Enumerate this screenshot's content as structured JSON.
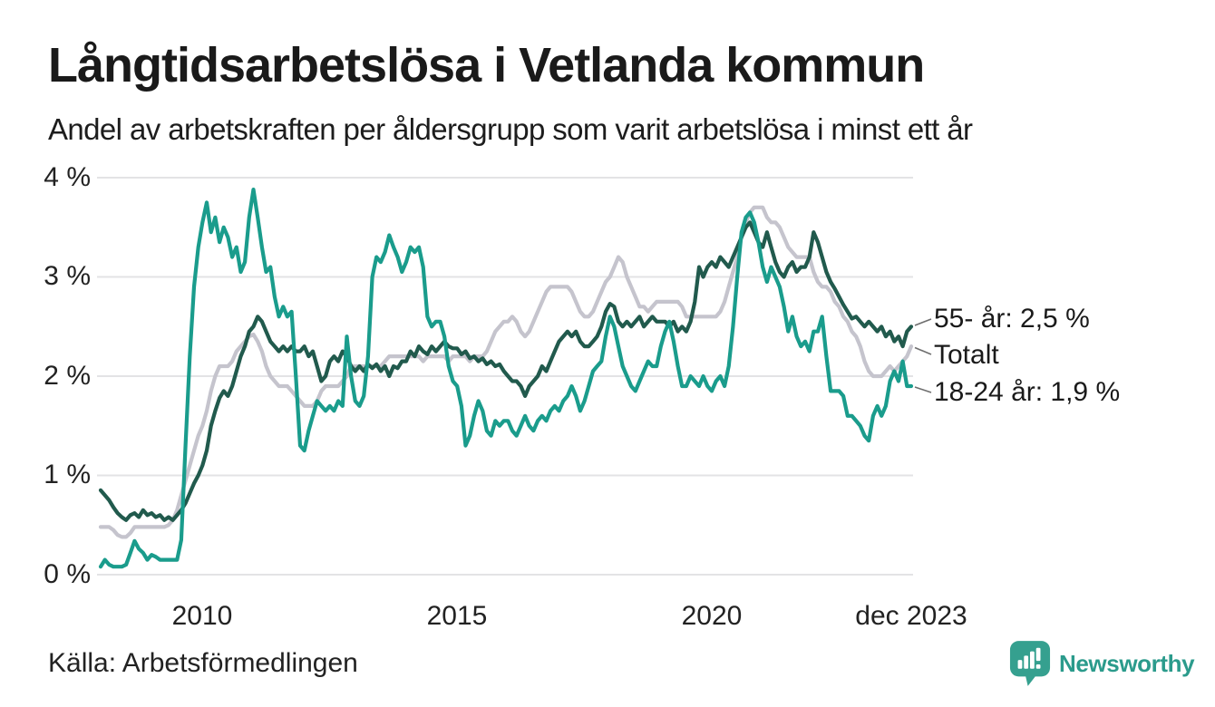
{
  "title": "Långtidsarbetslösa i Vetlanda kommun",
  "subtitle": "Andel av arbetskraften per åldersgrupp som varit arbetslösa i minst ett år",
  "source": "Källa: Arbetsförmedlingen",
  "brand": {
    "name": "Newsworthy",
    "color": "#2b9b8c"
  },
  "colors": {
    "line_55_ar": "#215a4d",
    "line_totalt": "#c5c4cd",
    "line_18_24_ar": "#1a9c8c",
    "grid": "#e3e3e5",
    "text": "#1a1a1a"
  },
  "chart_data": {
    "type": "line",
    "title": "Långtidsarbetslösa i Vetlanda kommun",
    "subtitle": "Andel av arbetskraften per åldersgrupp som varit arbetslösa i minst ett år",
    "x_start": "2008-01",
    "x_end": "2023-12",
    "frequency": "monthly",
    "ylim": [
      0,
      4
    ],
    "grid": "horizontal-only",
    "legend_position": "right-edge-labels",
    "y_ticks": [
      "0 %",
      "1 %",
      "2 %",
      "3 %",
      "4 %"
    ],
    "x_tick_labels": [
      "2010",
      "2015",
      "2020",
      "dec 2023"
    ],
    "x_tick_month_index": [
      24,
      84,
      144,
      191
    ],
    "series": [
      {
        "name": "55- år",
        "label": "55- år: 2,5 %",
        "last_value": 2.5,
        "color": "#215a4d",
        "values": [
          0.85,
          0.8,
          0.75,
          0.68,
          0.62,
          0.58,
          0.55,
          0.6,
          0.62,
          0.58,
          0.65,
          0.6,
          0.62,
          0.58,
          0.6,
          0.55,
          0.58,
          0.55,
          0.6,
          0.65,
          0.72,
          0.82,
          0.92,
          1.0,
          1.1,
          1.25,
          1.5,
          1.65,
          1.78,
          1.85,
          1.8,
          1.9,
          2.05,
          2.2,
          2.3,
          2.45,
          2.5,
          2.6,
          2.55,
          2.45,
          2.35,
          2.3,
          2.25,
          2.3,
          2.25,
          2.3,
          2.25,
          2.25,
          2.3,
          2.2,
          2.25,
          2.1,
          1.95,
          2.0,
          2.15,
          2.2,
          2.15,
          2.25,
          2.2,
          2.1,
          2.05,
          2.1,
          2.05,
          2.12,
          2.08,
          2.12,
          2.05,
          2.1,
          2.0,
          2.1,
          2.08,
          2.15,
          2.15,
          2.25,
          2.2,
          2.3,
          2.25,
          2.22,
          2.3,
          2.25,
          2.3,
          2.35,
          2.3,
          2.28,
          2.28,
          2.22,
          2.25,
          2.18,
          2.2,
          2.15,
          2.18,
          2.12,
          2.15,
          2.1,
          2.12,
          2.05,
          2.0,
          1.95,
          1.95,
          1.9,
          1.8,
          1.9,
          1.95,
          2.0,
          2.1,
          2.05,
          2.15,
          2.25,
          2.35,
          2.4,
          2.45,
          2.4,
          2.45,
          2.35,
          2.3,
          2.3,
          2.35,
          2.4,
          2.5,
          2.65,
          2.73,
          2.7,
          2.55,
          2.5,
          2.55,
          2.5,
          2.55,
          2.6,
          2.5,
          2.55,
          2.6,
          2.55,
          2.55,
          2.55,
          2.5,
          2.55,
          2.45,
          2.5,
          2.45,
          2.55,
          2.75,
          3.1,
          3.0,
          3.1,
          3.15,
          3.1,
          3.2,
          3.15,
          3.1,
          3.2,
          3.3,
          3.4,
          3.5,
          3.55,
          3.45,
          3.35,
          3.3,
          3.45,
          3.3,
          3.15,
          3.05,
          3.0,
          3.1,
          3.15,
          3.05,
          3.1,
          3.1,
          3.2,
          3.45,
          3.35,
          3.2,
          3.05,
          2.95,
          2.88,
          2.8,
          2.72,
          2.65,
          2.58,
          2.6,
          2.55,
          2.5,
          2.55,
          2.5,
          2.45,
          2.5,
          2.4,
          2.45,
          2.35,
          2.4,
          2.3,
          2.45,
          2.5
        ]
      },
      {
        "name": "Totalt",
        "label": "Totalt",
        "last_value": 2.3,
        "color": "#c5c4cd",
        "values": [
          0.48,
          0.48,
          0.48,
          0.45,
          0.4,
          0.38,
          0.38,
          0.42,
          0.48,
          0.48,
          0.48,
          0.48,
          0.48,
          0.48,
          0.48,
          0.48,
          0.5,
          0.55,
          0.65,
          0.8,
          0.95,
          1.1,
          1.25,
          1.4,
          1.5,
          1.65,
          1.85,
          2.0,
          2.1,
          2.1,
          2.1,
          2.15,
          2.25,
          2.3,
          2.35,
          2.4,
          2.42,
          2.35,
          2.25,
          2.1,
          2.0,
          1.95,
          1.9,
          1.9,
          1.9,
          1.85,
          1.8,
          1.75,
          1.7,
          1.7,
          1.7,
          1.75,
          1.85,
          1.9,
          1.9,
          1.9,
          1.9,
          1.95,
          2.0,
          2.1,
          2.1,
          2.1,
          2.1,
          2.1,
          2.1,
          2.1,
          2.1,
          2.15,
          2.2,
          2.2,
          2.2,
          2.2,
          2.2,
          2.2,
          2.2,
          2.2,
          2.15,
          2.2,
          2.2,
          2.2,
          2.2,
          2.2,
          2.15,
          2.2,
          2.2,
          2.2,
          2.2,
          2.15,
          2.2,
          2.2,
          2.2,
          2.25,
          2.35,
          2.45,
          2.5,
          2.55,
          2.55,
          2.6,
          2.55,
          2.45,
          2.4,
          2.45,
          2.55,
          2.65,
          2.75,
          2.85,
          2.9,
          2.9,
          2.9,
          2.9,
          2.9,
          2.85,
          2.75,
          2.65,
          2.6,
          2.6,
          2.65,
          2.75,
          2.85,
          2.95,
          3.0,
          3.1,
          3.2,
          3.15,
          3.0,
          2.9,
          2.8,
          2.7,
          2.7,
          2.65,
          2.7,
          2.75,
          2.75,
          2.75,
          2.75,
          2.75,
          2.75,
          2.7,
          2.6,
          2.6,
          2.6,
          2.6,
          2.6,
          2.6,
          2.6,
          2.6,
          2.65,
          2.75,
          2.9,
          3.05,
          3.2,
          3.4,
          3.55,
          3.65,
          3.7,
          3.7,
          3.7,
          3.6,
          3.55,
          3.55,
          3.5,
          3.4,
          3.3,
          3.25,
          3.2,
          3.2,
          3.2,
          3.2,
          3.05,
          2.95,
          2.9,
          2.9,
          2.85,
          2.75,
          2.7,
          2.6,
          2.55,
          2.45,
          2.4,
          2.3,
          2.15,
          2.05,
          2.0,
          2.0,
          2.0,
          2.05,
          2.1,
          2.05,
          2.1,
          2.15,
          2.2,
          2.3
        ]
      },
      {
        "name": "18-24 år",
        "label": "18-24 år: 1,9 %",
        "last_value": 1.9,
        "color": "#1a9c8c",
        "values": [
          0.08,
          0.15,
          0.1,
          0.08,
          0.08,
          0.08,
          0.1,
          0.22,
          0.34,
          0.26,
          0.22,
          0.15,
          0.2,
          0.18,
          0.15,
          0.15,
          0.15,
          0.15,
          0.15,
          0.35,
          1.3,
          2.2,
          2.9,
          3.3,
          3.55,
          3.75,
          3.45,
          3.6,
          3.35,
          3.5,
          3.4,
          3.2,
          3.3,
          3.05,
          3.15,
          3.6,
          3.88,
          3.6,
          3.3,
          3.05,
          3.1,
          2.8,
          2.6,
          2.7,
          2.6,
          2.65,
          2.0,
          1.3,
          1.25,
          1.45,
          1.6,
          1.75,
          1.7,
          1.65,
          1.7,
          1.65,
          1.75,
          1.7,
          2.4,
          2.0,
          1.75,
          1.7,
          1.8,
          2.2,
          3.0,
          3.2,
          3.15,
          3.25,
          3.42,
          3.3,
          3.2,
          3.05,
          3.15,
          3.3,
          3.25,
          3.3,
          3.1,
          2.6,
          2.5,
          2.55,
          2.55,
          2.4,
          2.1,
          1.95,
          1.9,
          1.7,
          1.3,
          1.4,
          1.6,
          1.75,
          1.65,
          1.45,
          1.4,
          1.55,
          1.5,
          1.55,
          1.55,
          1.45,
          1.4,
          1.5,
          1.6,
          1.5,
          1.45,
          1.55,
          1.6,
          1.55,
          1.65,
          1.7,
          1.65,
          1.75,
          1.8,
          1.9,
          1.8,
          1.65,
          1.75,
          1.9,
          2.05,
          2.1,
          2.15,
          2.4,
          2.6,
          2.5,
          2.3,
          2.1,
          2.0,
          1.9,
          1.85,
          1.95,
          2.05,
          2.15,
          2.1,
          2.1,
          2.3,
          2.45,
          2.55,
          2.35,
          2.1,
          1.9,
          1.9,
          2.0,
          1.95,
          1.9,
          2.0,
          1.9,
          1.85,
          1.95,
          2.0,
          1.9,
          2.1,
          2.5,
          3.0,
          3.45,
          3.6,
          3.65,
          3.55,
          3.35,
          3.1,
          2.95,
          3.1,
          3.0,
          2.9,
          2.7,
          2.45,
          2.6,
          2.4,
          2.3,
          2.35,
          2.25,
          2.45,
          2.45,
          2.6,
          2.2,
          1.85,
          1.85,
          1.85,
          1.8,
          1.6,
          1.6,
          1.55,
          1.5,
          1.4,
          1.35,
          1.6,
          1.7,
          1.6,
          1.7,
          1.95,
          2.05,
          1.95,
          2.15,
          1.9,
          1.9
        ]
      }
    ]
  }
}
